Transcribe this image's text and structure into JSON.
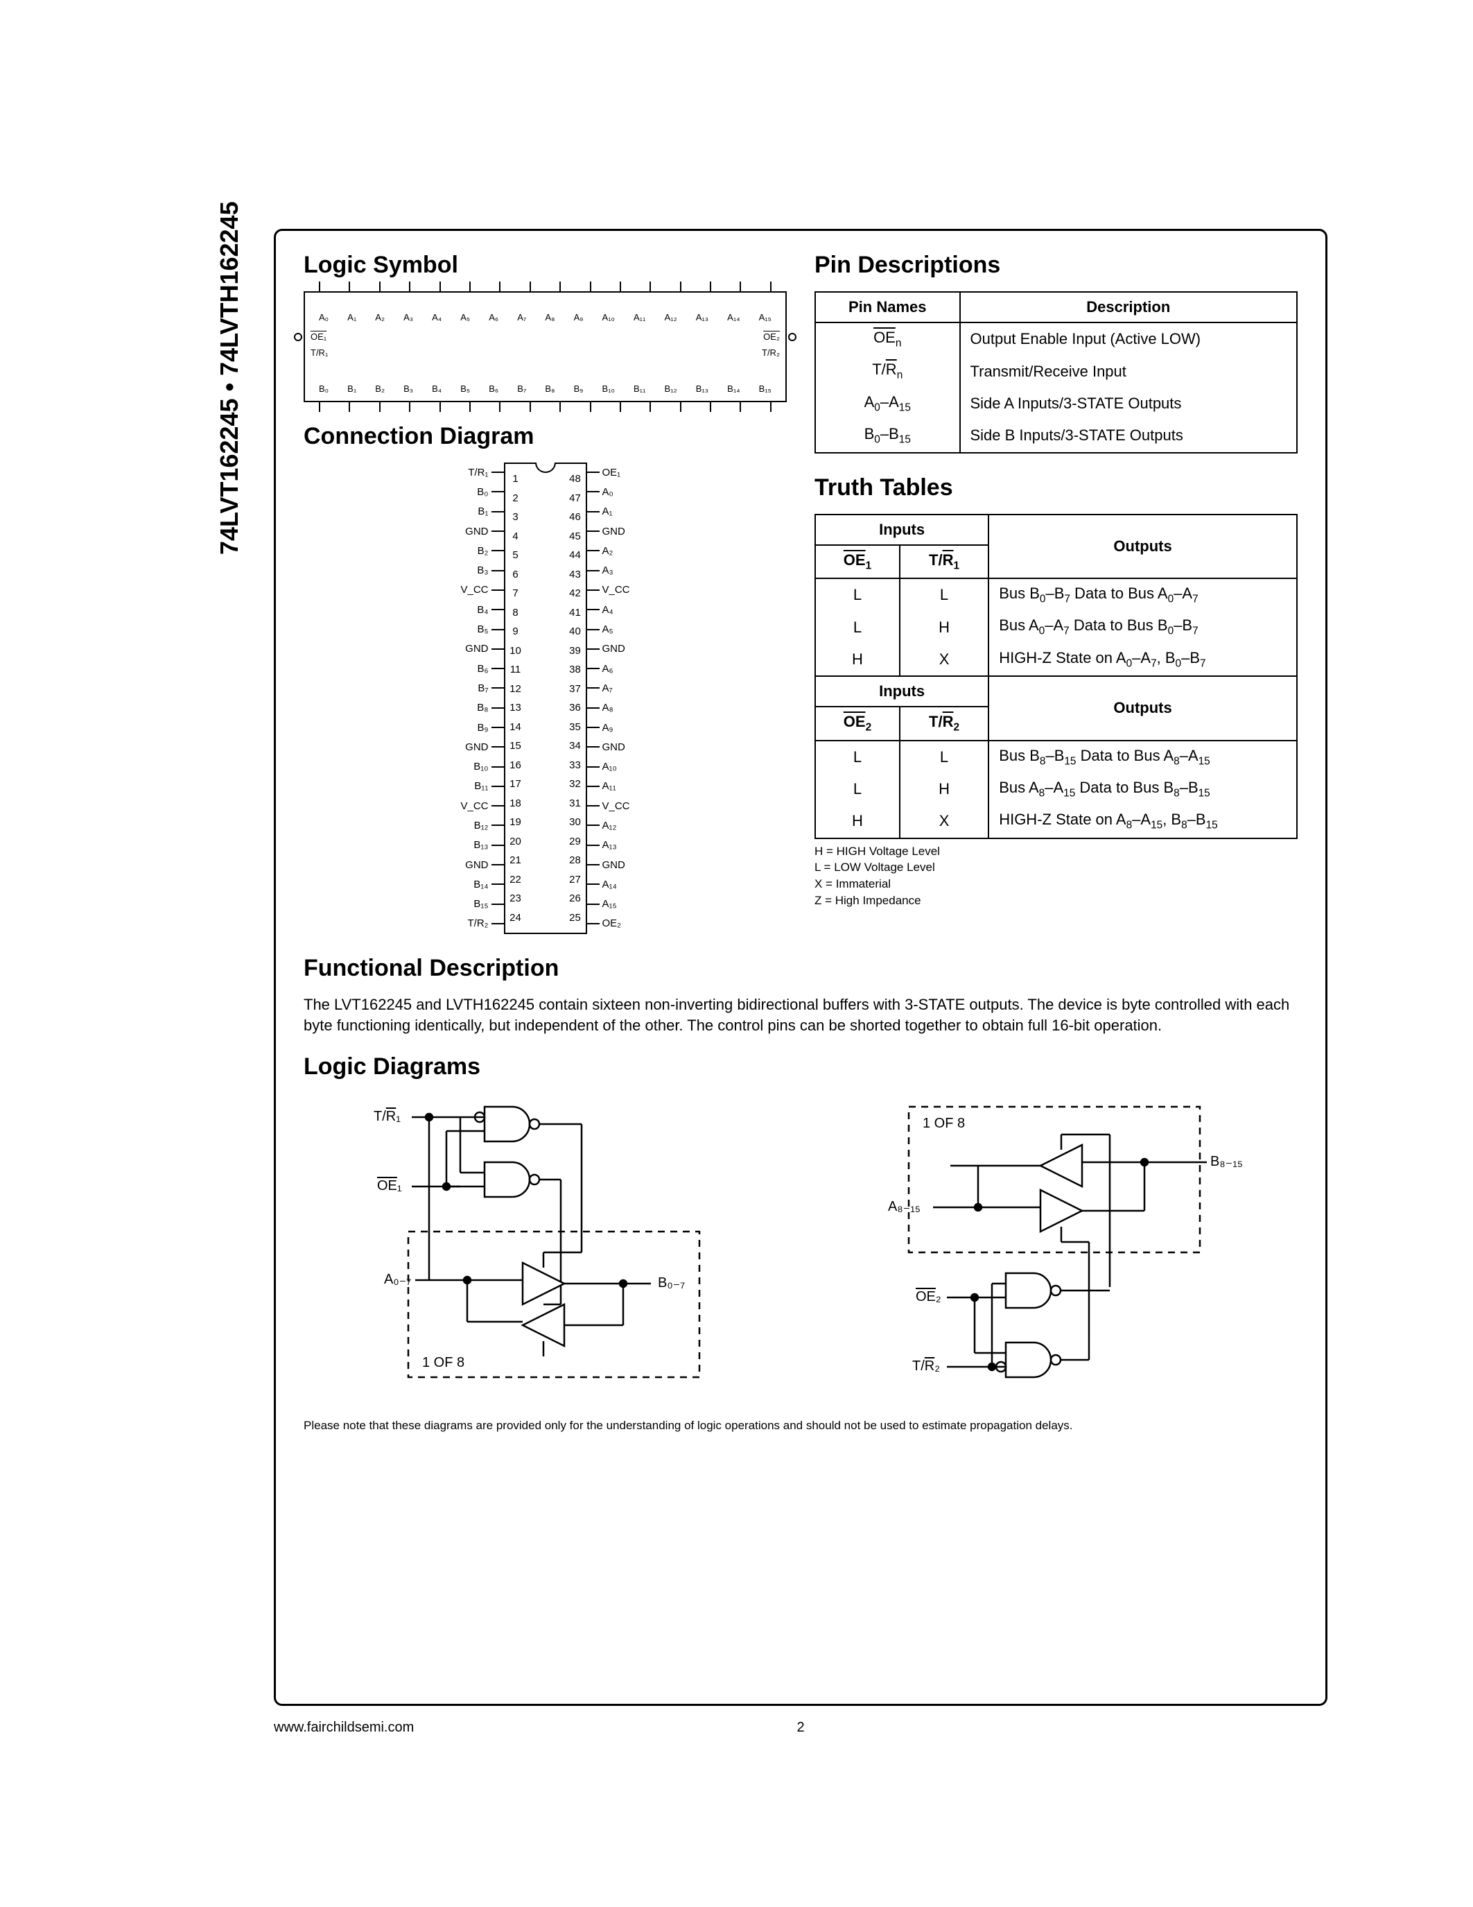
{
  "side_title": "74LVT162245 • 74LVTH162245",
  "headings": {
    "logic_symbol": "Logic Symbol",
    "connection_diagram": "Connection Diagram",
    "pin_descriptions": "Pin Descriptions",
    "truth_tables": "Truth Tables",
    "functional_description": "Functional Description",
    "logic_diagrams": "Logic Diagrams"
  },
  "logic_symbol": {
    "top_pins": [
      "A₀",
      "A₁",
      "A₂",
      "A₃",
      "A₄",
      "A₅",
      "A₆",
      "A₇",
      "A₈",
      "A₉",
      "A₁₀",
      "A₁₁",
      "A₁₂",
      "A₁₃",
      "A₁₄",
      "A₁₅"
    ],
    "bot_pins": [
      "B₀",
      "B₁",
      "B₂",
      "B₃",
      "B₄",
      "B₅",
      "B₆",
      "B₇",
      "B₈",
      "B₉",
      "B₁₀",
      "B₁₁",
      "B₁₂",
      "B₁₃",
      "B₁₄",
      "B₁₅"
    ],
    "left": [
      "OE₁",
      "T/R₁"
    ],
    "right": [
      "OE₂",
      "T/R₂"
    ]
  },
  "connection": {
    "left_labels": [
      "T/R₁",
      "B₀",
      "B₁",
      "GND",
      "B₂",
      "B₃",
      "V_CC",
      "B₄",
      "B₅",
      "GND",
      "B₆",
      "B₇",
      "B₈",
      "B₉",
      "GND",
      "B₁₀",
      "B₁₁",
      "V_CC",
      "B₁₂",
      "B₁₃",
      "GND",
      "B₁₄",
      "B₁₅",
      "T/R₂"
    ],
    "right_labels": [
      "OE₁",
      "A₀",
      "A₁",
      "GND",
      "A₂",
      "A₃",
      "V_CC",
      "A₄",
      "A₅",
      "GND",
      "A₆",
      "A₇",
      "A₈",
      "A₉",
      "GND",
      "A₁₀",
      "A₁₁",
      "V_CC",
      "A₁₂",
      "A₁₃",
      "GND",
      "A₁₄",
      "A₁₅",
      "OE₂"
    ]
  },
  "pin_table": {
    "header": [
      "Pin Names",
      "Description"
    ],
    "rows": [
      [
        "OEₙ",
        "Output Enable Input (Active LOW)"
      ],
      [
        "T/Rₙ",
        "Transmit/Receive Input"
      ],
      [
        "A₀–A₁₅",
        "Side A Inputs/3-STATE Outputs"
      ],
      [
        "B₀–B₁₅",
        "Side B Inputs/3-STATE Outputs"
      ]
    ]
  },
  "truth1": {
    "in_header": "Inputs",
    "out_header": "Outputs",
    "sub_headers": [
      "OE₁",
      "T/R₁"
    ],
    "rows": [
      [
        "L",
        "L",
        "Bus B₀–B₇ Data to Bus A₀–A₇"
      ],
      [
        "L",
        "H",
        "Bus A₀–A₇ Data to Bus B₀–B₇"
      ],
      [
        "H",
        "X",
        "HIGH-Z State on A₀–A₇, B₀–B₇"
      ]
    ]
  },
  "truth2": {
    "in_header": "Inputs",
    "out_header": "Outputs",
    "sub_headers": [
      "OE₂",
      "T/R₂"
    ],
    "rows": [
      [
        "L",
        "L",
        "Bus B₈–B₁₅ Data to Bus A₈–A₁₅"
      ],
      [
        "L",
        "H",
        "Bus A₈–A₁₅ Data to Bus B₈–B₁₅"
      ],
      [
        "H",
        "X",
        "HIGH-Z State on A₈–A₁₅, B₈–B₁₅"
      ]
    ]
  },
  "legend": {
    "l1": "H = HIGH Voltage Level",
    "l2": "L = LOW Voltage Level",
    "l3": "X = Immaterial",
    "l4": "Z = High Impedance"
  },
  "func_desc_text": "The LVT162245 and LVTH162245 contain sixteen non-inverting bidirectional buffers with 3-STATE outputs. The device is byte controlled with each byte functioning identically, but independent of the other. The control pins can be shorted together to obtain full 16-bit operation.",
  "logic_diag": {
    "d1": {
      "tr": "T/R₁",
      "oe": "OE₁",
      "a": "A₀₋₇",
      "b": "B₀₋₇",
      "note": "1 OF 8"
    },
    "d2": {
      "tr": "T/R₂",
      "oe": "OE₂",
      "a": "A₈₋₁₅",
      "b": "B₈₋₁₅",
      "note": "1 OF 8"
    }
  },
  "ld_note": "Please note that these diagrams are provided only for the understanding of logic operations and should not be used to estimate propagation delays.",
  "footer_url": "www.fairchildsemi.com",
  "page_number": "2",
  "colors": {
    "border": "#000000",
    "bg": "#ffffff"
  }
}
